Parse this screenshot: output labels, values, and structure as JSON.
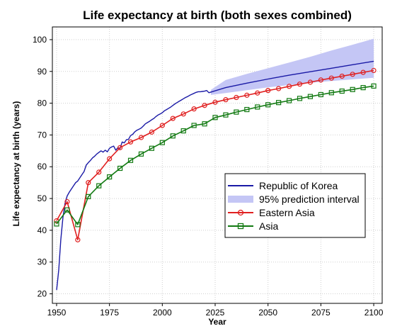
{
  "chart_data": {
    "type": "line",
    "title": "Life expectancy at birth (both sexes combined)",
    "xlabel": "Year",
    "ylabel": "Life expectancy at birth (years)",
    "xlim": [
      1948,
      2104
    ],
    "ylim": [
      17,
      104
    ],
    "x_ticks": [
      1950,
      1975,
      2000,
      2025,
      2050,
      2075,
      2100
    ],
    "y_ticks": [
      20,
      30,
      40,
      50,
      60,
      70,
      80,
      90,
      100
    ],
    "grid": true,
    "legend_position": "lower-right",
    "series": [
      {
        "name": "Republic of Korea",
        "color": "#1a1aa6",
        "x": [
          1950,
          1951,
          1952,
          1953,
          1954,
          1955,
          1956,
          1957,
          1958,
          1959,
          1960,
          1961,
          1962,
          1963,
          1964,
          1965,
          1966,
          1967,
          1968,
          1969,
          1970,
          1971,
          1972,
          1973,
          1974,
          1975,
          1976,
          1977,
          1978,
          1979,
          1980,
          1981,
          1982,
          1983,
          1984,
          1985,
          1986,
          1987,
          1988,
          1989,
          1990,
          1991,
          1992,
          1993,
          1994,
          1995,
          1996,
          1997,
          1998,
          1999,
          2000,
          2001,
          2002,
          2003,
          2004,
          2005,
          2006,
          2007,
          2008,
          2009,
          2010,
          2011,
          2012,
          2013,
          2014,
          2015,
          2016,
          2017,
          2018,
          2019,
          2020,
          2021,
          2022,
          2023,
          2030,
          2040,
          2050,
          2060,
          2070,
          2080,
          2090,
          2100
        ],
        "values": [
          21.2,
          27.5,
          37,
          44,
          48.5,
          50.8,
          52,
          53,
          54,
          55,
          55.5,
          56.5,
          57.5,
          58.5,
          60.5,
          61.3,
          62,
          62.8,
          63.3,
          64,
          64.5,
          65,
          64.6,
          65.2,
          64.7,
          65.8,
          66.2,
          66.5,
          65.2,
          66,
          65.7,
          67.8,
          67.5,
          68.5,
          68.6,
          69.8,
          70.2,
          71,
          71.5,
          71.8,
          72.2,
          72.8,
          73.5,
          73.9,
          74.3,
          74.8,
          75.2,
          75.8,
          76.3,
          76.6,
          77,
          77.6,
          78,
          78.4,
          78.8,
          79.3,
          79.8,
          80.2,
          80.6,
          81,
          81.4,
          81.8,
          82.1,
          82.5,
          82.8,
          83.1,
          83.4,
          83.6,
          83.6,
          83.7,
          83.8,
          84,
          83.3,
          83.5,
          84.9,
          86.3,
          87.6,
          88.8,
          89.9,
          91,
          92.1,
          93.2
        ]
      },
      {
        "name": "95% prediction interval",
        "color": "#c4c6f5",
        "x": [
          2023,
          2030,
          2040,
          2050,
          2060,
          2070,
          2080,
          2090,
          2100
        ],
        "lower": [
          82.6,
          83.2,
          84.1,
          85,
          85.7,
          86.4,
          87,
          87.5,
          88
        ],
        "upper": [
          84.2,
          87.3,
          89.2,
          91,
          92.8,
          94.6,
          96.6,
          98.4,
          100.3
        ]
      },
      {
        "name": "Eastern Asia",
        "color": "#e02020",
        "marker": "circle",
        "x": [
          1950,
          1955,
          1960,
          1965,
          1970,
          1975,
          1980,
          1985,
          1990,
          1995,
          2000,
          2005,
          2010,
          2015,
          2020,
          2025,
          2030,
          2035,
          2040,
          2045,
          2050,
          2055,
          2060,
          2065,
          2070,
          2075,
          2080,
          2085,
          2090,
          2095,
          2100
        ],
        "values": [
          43,
          49,
          37,
          55,
          58.3,
          62.5,
          66,
          67.8,
          69.2,
          70.9,
          73,
          75.2,
          76.6,
          78.2,
          79.3,
          80.3,
          81.1,
          81.8,
          82.5,
          83.2,
          84,
          84.6,
          85.3,
          86,
          86.6,
          87.3,
          87.9,
          88.5,
          89.1,
          89.7,
          90.3
        ]
      },
      {
        "name": "Asia",
        "color": "#127a12",
        "marker": "square",
        "x": [
          1950,
          1955,
          1960,
          1965,
          1970,
          1975,
          1980,
          1985,
          1990,
          1995,
          2000,
          2005,
          2010,
          2015,
          2020,
          2025,
          2030,
          2035,
          2040,
          2045,
          2050,
          2055,
          2060,
          2065,
          2070,
          2075,
          2080,
          2085,
          2090,
          2095,
          2100
        ],
        "values": [
          42,
          46.4,
          41.8,
          50.6,
          54,
          56.8,
          59.5,
          62,
          64,
          65.8,
          67.6,
          69.7,
          71.3,
          73,
          73.5,
          75.5,
          76.3,
          77.2,
          78,
          78.8,
          79.5,
          80.2,
          80.8,
          81.5,
          82.1,
          82.7,
          83.3,
          83.8,
          84.3,
          84.9,
          85.4
        ]
      }
    ]
  }
}
